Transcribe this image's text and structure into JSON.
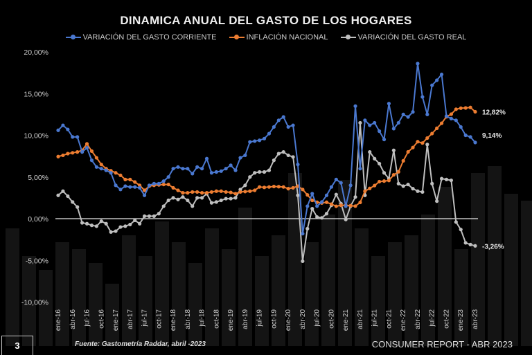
{
  "chart_data": {
    "type": "line",
    "title": "DINAMICA ANUAL DEL GASTO DE LOS HOGARES",
    "xlabel": "",
    "ylabel": "",
    "ylim": [
      -10,
      20
    ],
    "yticks": [
      "20,00%",
      "15,00%",
      "10,00%",
      "5,00%",
      "0,00%",
      "-5,00%",
      "-10,00%"
    ],
    "ytick_values": [
      20,
      15,
      10,
      5,
      0,
      -5,
      -10
    ],
    "legend_position": "top-center",
    "x_start": "ene-16",
    "x_frequency": "monthly",
    "xtick_labels": [
      "ene-16",
      "abr-16",
      "jul-16",
      "oct-16",
      "ene-17",
      "abr-17",
      "jul-17",
      "oct-17",
      "ene-18",
      "abr-18",
      "jul-18",
      "oct-18",
      "ene-19",
      "abr-19",
      "jul-19",
      "oct-19",
      "ene-20",
      "abr-20",
      "jul-20",
      "oct-20",
      "ene-21",
      "abr-21",
      "jul-21",
      "oct-21",
      "ene-22",
      "abr-22",
      "jul-22",
      "oct-22",
      "ene-23",
      "abr-23"
    ],
    "series": [
      {
        "name": "VARIACIÓN DEL GASTO CORRIENTE",
        "color": "#4a78d0",
        "end_label": "9,14%",
        "values": [
          10.6,
          11.2,
          10.7,
          9.8,
          9.8,
          8.0,
          8.5,
          7.0,
          6.2,
          6.0,
          5.8,
          5.5,
          4.0,
          3.5,
          3.9,
          3.8,
          3.8,
          3.7,
          2.8,
          4.0,
          4.2,
          4.2,
          4.5,
          5.0,
          6.0,
          6.2,
          6.0,
          6.0,
          5.4,
          6.2,
          6.0,
          7.2,
          5.5,
          5.6,
          5.7,
          6.0,
          6.4,
          5.8,
          7.3,
          7.6,
          9.2,
          9.3,
          9.4,
          9.6,
          10.2,
          11.0,
          11.8,
          12.2,
          11.0,
          11.2,
          6.5,
          -1.8,
          1.5,
          3.0,
          1.5,
          2.0,
          2.8,
          3.8,
          4.7,
          4.3,
          1.5,
          4.0,
          13.5,
          6.0,
          11.8,
          11.2,
          11.5,
          10.5,
          9.5,
          13.8,
          10.8,
          11.5,
          12.5,
          12.2,
          12.8,
          18.6,
          14.6,
          12.5,
          16.0,
          16.6,
          17.3,
          12.3,
          12.0,
          11.8,
          11.0,
          10.0,
          9.8,
          9.14
        ]
      },
      {
        "name": "INFLACIÓN NACIONAL",
        "color": "#ed7d31",
        "end_label": "12,82%",
        "values": [
          7.45,
          7.6,
          7.8,
          7.9,
          8.0,
          8.2,
          8.97,
          8.1,
          7.3,
          6.5,
          6.0,
          5.75,
          5.5,
          5.2,
          4.7,
          4.7,
          4.4,
          4.0,
          3.4,
          3.9,
          4.0,
          4.05,
          4.1,
          4.1,
          3.7,
          3.4,
          3.1,
          3.1,
          3.2,
          3.2,
          3.1,
          3.1,
          3.2,
          3.3,
          3.3,
          3.2,
          3.15,
          3.0,
          3.2,
          3.25,
          3.3,
          3.4,
          3.8,
          3.75,
          3.8,
          3.86,
          3.84,
          3.8,
          3.6,
          3.7,
          3.9,
          3.5,
          2.85,
          2.2,
          1.97,
          1.88,
          1.97,
          1.75,
          1.49,
          1.61,
          1.6,
          1.56,
          1.51,
          1.95,
          3.3,
          3.63,
          3.97,
          4.44,
          4.51,
          4.58,
          5.26,
          5.62,
          6.94,
          8.01,
          8.53,
          9.23,
          9.07,
          9.67,
          10.21,
          10.84,
          11.44,
          12.22,
          12.53,
          13.12,
          13.25,
          13.28,
          13.34,
          12.82
        ]
      },
      {
        "name": "VARIACIÓN DEL GASTO REAL",
        "color": "#bfbfbf",
        "end_label": "-3,26%",
        "values": [
          2.8,
          3.3,
          2.7,
          2.0,
          1.4,
          -0.5,
          -0.6,
          -0.8,
          -0.9,
          -0.3,
          -0.6,
          -1.6,
          -1.5,
          -1.0,
          -0.9,
          -0.7,
          -0.2,
          -0.6,
          0.3,
          0.3,
          0.3,
          0.6,
          1.5,
          2.2,
          2.5,
          2.3,
          2.6,
          2.2,
          1.5,
          2.5,
          2.5,
          3.0,
          1.9,
          2.0,
          2.2,
          2.4,
          2.4,
          2.5,
          3.5,
          4.0,
          5.0,
          5.5,
          5.6,
          5.6,
          5.8,
          7.0,
          7.8,
          8.0,
          7.6,
          7.4,
          2.8,
          -5.1,
          -1.2,
          1.2,
          0.2,
          0.1,
          0.6,
          1.6,
          2.9,
          1.8,
          -0.1,
          1.5,
          2.6,
          11.5,
          2.8,
          8.0,
          7.2,
          6.6,
          5.5,
          4.8,
          8.2,
          4.2,
          3.9,
          4.1,
          3.6,
          3.3,
          3.2,
          8.9,
          4.2,
          2.1,
          4.8,
          4.7,
          4.6,
          -0.4,
          -1.3,
          -2.9,
          -3.1,
          -3.26
        ]
      }
    ]
  },
  "footer": {
    "page_number": "3",
    "source": "Fuente: Gastometría Raddar, abril -2023",
    "report": "CONSUMER REPORT - ABR 2023"
  }
}
